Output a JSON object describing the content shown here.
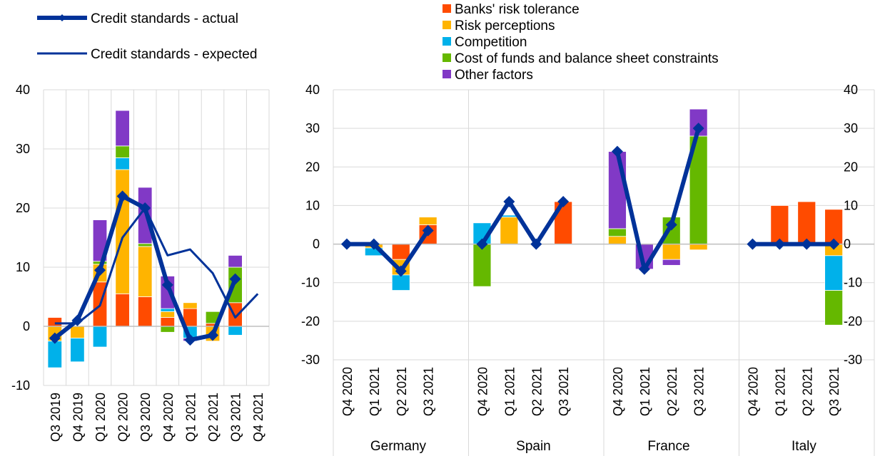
{
  "chart_data": [
    {
      "type": "bar",
      "subtype": "stacked-bar-with-lines",
      "categories": [
        "Q3 2019",
        "Q4 2019",
        "Q1 2020",
        "Q2 2020",
        "Q3 2020",
        "Q4 2020",
        "Q1 2021",
        "Q2 2021",
        "Q3 2021",
        "Q4 2021"
      ],
      "ylim": [
        -10,
        40
      ],
      "yticks": [
        -10,
        0,
        10,
        20,
        30,
        40
      ],
      "grid": true,
      "series": [
        {
          "name": "Banks' risk tolerance",
          "color": "#ff4b00",
          "values": [
            1.5,
            0,
            7.5,
            5.5,
            5,
            1.5,
            3,
            0.5,
            4,
            null
          ]
        },
        {
          "name": "Risk perceptions",
          "color": "#ffb400",
          "values": [
            -2.5,
            -2,
            3,
            21,
            8.5,
            1,
            1,
            -2.5,
            0,
            null
          ]
        },
        {
          "name": "Competition",
          "color": "#00b1ea",
          "values": [
            -4.5,
            -4,
            -3.5,
            2,
            0,
            0.5,
            -2,
            0,
            -1.5,
            null
          ]
        },
        {
          "name": "Cost of funds and balance sheet constraints",
          "color": "#65b800",
          "values": [
            0,
            0,
            0.5,
            2,
            0.5,
            -1,
            0,
            2,
            6,
            null
          ]
        },
        {
          "name": "Other factors",
          "color": "#8139c6",
          "values": [
            0,
            0,
            7,
            6,
            9.5,
            5.5,
            -0.5,
            0,
            2,
            null
          ]
        }
      ],
      "lines": [
        {
          "name": "Credit standards - actual",
          "color": "#003299",
          "marker": "diamond",
          "values": [
            -2,
            1,
            9.5,
            22,
            20,
            7,
            -2.3,
            -1.5,
            8,
            null
          ]
        },
        {
          "name": "Credit standards - expected",
          "color": "#003299",
          "values": [
            0.5,
            0.5,
            3.5,
            15,
            20,
            12,
            13,
            9,
            1.5,
            5.5
          ]
        }
      ]
    },
    {
      "type": "bar",
      "subtype": "stacked-bar-with-lines-grouped",
      "groups": [
        {
          "name": "Germany",
          "quarters": [
            "Q4 2020",
            "Q1 2021",
            "Q2 2021",
            "Q3 2021"
          ]
        },
        {
          "name": "Spain",
          "quarters": [
            "Q4 2020",
            "Q1 2021",
            "Q2 2021",
            "Q3 2021"
          ]
        },
        {
          "name": "France",
          "quarters": [
            "Q4 2020",
            "Q1 2021",
            "Q2 2021",
            "Q3 2021"
          ]
        },
        {
          "name": "Italy",
          "quarters": [
            "Q4 2020",
            "Q1 2021",
            "Q2 2021",
            "Q3 2021"
          ]
        }
      ],
      "ylim": [
        -30,
        40
      ],
      "yticks": [
        -30,
        -20,
        -10,
        0,
        10,
        20,
        30,
        40
      ],
      "grid": true,
      "series": [
        {
          "name": "Banks' risk tolerance",
          "color": "#ff4b00",
          "values": [
            [
              0,
              0,
              -4,
              5
            ],
            [
              0,
              0,
              0,
              11
            ],
            [
              0,
              0,
              0,
              0
            ],
            [
              0,
              10,
              11,
              9
            ]
          ]
        },
        {
          "name": "Risk perceptions",
          "color": "#ffb400",
          "values": [
            [
              0,
              -1,
              -4,
              2
            ],
            [
              0,
              7,
              0,
              0
            ],
            [
              2,
              0,
              -4,
              -1.5
            ],
            [
              0,
              0,
              0,
              -3
            ]
          ]
        },
        {
          "name": "Competition",
          "color": "#00b1ea",
          "values": [
            [
              0,
              -2,
              -4,
              0
            ],
            [
              5.5,
              0.5,
              0,
              0
            ],
            [
              0,
              0,
              0,
              0
            ],
            [
              0,
              0,
              0,
              -9
            ]
          ]
        },
        {
          "name": "Cost of funds and balance sheet constraints",
          "color": "#65b800",
          "values": [
            [
              0,
              0,
              0,
              0
            ],
            [
              -11,
              0,
              0,
              0
            ],
            [
              2,
              0,
              7,
              28
            ],
            [
              0,
              0,
              0,
              -9
            ]
          ]
        },
        {
          "name": "Other factors",
          "color": "#8139c6",
          "values": [
            [
              0,
              0,
              0,
              0
            ],
            [
              0,
              0,
              0,
              0
            ],
            [
              20,
              -6.5,
              -1.5,
              7
            ],
            [
              0,
              0,
              0,
              0
            ]
          ]
        }
      ],
      "lines": [
        {
          "name": "Credit standards - actual",
          "color": "#003299",
          "marker": "diamond",
          "values": [
            [
              0,
              0,
              -7,
              3.5
            ],
            [
              0,
              11,
              0,
              11
            ],
            [
              24,
              -6.5,
              5,
              30
            ],
            [
              0,
              0,
              0,
              0
            ]
          ]
        }
      ]
    }
  ],
  "legend_left": [
    {
      "label": "Credit standards - actual",
      "style": "thick-line-diamond"
    },
    {
      "label": "Credit standards - expected",
      "style": "thin-line"
    }
  ],
  "legend_right": [
    {
      "label": "Banks' risk tolerance",
      "color": "#ff4b00"
    },
    {
      "label": "Risk perceptions",
      "color": "#ffb400"
    },
    {
      "label": "Competition",
      "color": "#00b1ea"
    },
    {
      "label": "Cost of funds and balance sheet constraints",
      "color": "#65b800"
    },
    {
      "label": "Other factors",
      "color": "#8139c6"
    }
  ]
}
